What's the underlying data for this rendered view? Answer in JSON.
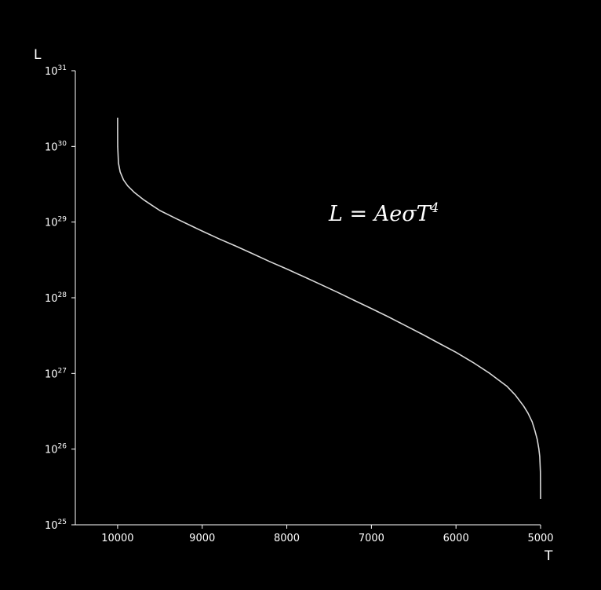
{
  "chart_data": {
    "type": "line",
    "title": "",
    "xlabel": "T",
    "ylabel": "L",
    "xlim": [
      10500,
      5000
    ],
    "x_inverted": true,
    "ylim": [
      1e+25,
      1e+31
    ],
    "yscale": "log",
    "x_ticks": [
      10000,
      9000,
      8000,
      7000,
      6000,
      5000
    ],
    "x_tick_labels": [
      "10000",
      "9000",
      "8000",
      "7000",
      "6000",
      "5000"
    ],
    "y_tick_exponents": [
      25,
      26,
      27,
      28,
      29,
      30,
      31
    ],
    "y_tick_base": "10",
    "grid": false,
    "colors": {
      "background": "#000000",
      "axes": "#ffffff",
      "line": "#d9d9d9"
    },
    "annotation": {
      "text": "L = AeσT⁴",
      "base": "L = AeσT",
      "sup": "4"
    },
    "series": [
      {
        "x": [
          10000,
          9999.9,
          9999,
          9990,
          9970,
          9930,
          9880,
          9800,
          9700,
          9600,
          9500,
          9300,
          9100,
          9000,
          8800,
          8600,
          8400,
          8200,
          8000,
          7800,
          7600,
          7400,
          7200,
          7000,
          6800,
          6600,
          6400,
          6200,
          6000,
          5800,
          5600,
          5400,
          5300,
          5200,
          5150,
          5100,
          5070,
          5040,
          5020,
          5010,
          5002,
          5000.1
        ],
        "y": [
          2.4e+30,
          1.6e+30,
          1e+30,
          6e+29,
          4.6e+29,
          3.6e+29,
          3e+29,
          2.45e+29,
          2e+29,
          1.68e+29,
          1.42e+29,
          1.1e+29,
          8.6e+28,
          7.6e+28,
          6e+28,
          4.8e+28,
          3.8e+28,
          3e+28,
          2.4e+28,
          1.9e+28,
          1.5e+28,
          1.18e+28,
          9.2e+27,
          7.2e+27,
          5.6e+27,
          4.3e+27,
          3.3e+27,
          2.5e+27,
          1.9e+27,
          1.4e+27,
          1e+27,
          6.8e+26,
          5.2e+26,
          3.7e+26,
          3e+26,
          2.3e+26,
          1.8e+26,
          1.35e+26,
          1e+26,
          8e+25,
          5e+25,
          2.2e+25
        ]
      }
    ]
  }
}
